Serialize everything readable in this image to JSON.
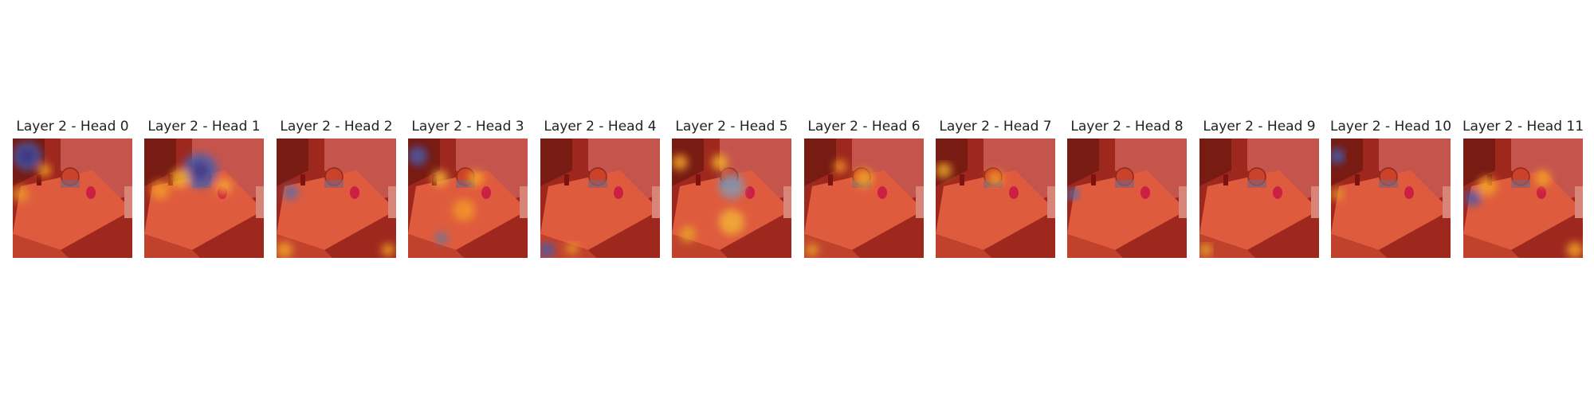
{
  "figure": {
    "panels": [
      {
        "title": "Layer 2 - Head 0"
      },
      {
        "title": "Layer 2 - Head 1"
      },
      {
        "title": "Layer 2 - Head 2"
      },
      {
        "title": "Layer 2 - Head 3"
      },
      {
        "title": "Layer 2 - Head 4"
      },
      {
        "title": "Layer 2 - Head 5"
      },
      {
        "title": "Layer 2 - Head 6"
      },
      {
        "title": "Layer 2 - Head 7"
      },
      {
        "title": "Layer 2 - Head 8"
      },
      {
        "title": "Layer 2 - Head 9"
      },
      {
        "title": "Layer 2 - Head 10"
      },
      {
        "title": "Layer 2 - Head 11"
      }
    ]
  }
}
